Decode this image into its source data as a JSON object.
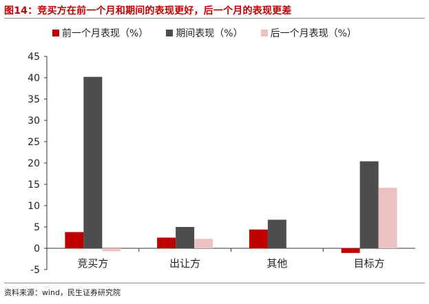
{
  "title": "图14：竞买方在前一个月和期间的表现更好，后一个月的表现更差",
  "source": "资料来源：wind，民生证券研究院",
  "chart_data": {
    "type": "bar",
    "categories": [
      "竞买方",
      "出让方",
      "其他",
      "目标方"
    ],
    "series": [
      {
        "name": "前一个月表现（%）",
        "color": "#c00000",
        "values": [
          3.8,
          2.5,
          4.4,
          -1.1
        ]
      },
      {
        "name": "期间表现（%）",
        "color": "#4d4d4d",
        "values": [
          40.2,
          5.0,
          6.7,
          20.4
        ]
      },
      {
        "name": "后一个月表现（%）",
        "color": "#ecc1c1",
        "values": [
          -0.7,
          2.2,
          0.0,
          14.2
        ]
      }
    ],
    "yticks": [
      "45",
      "40",
      "35",
      "30",
      "25",
      "20",
      "15",
      "10",
      "5",
      "0",
      "-5"
    ],
    "ylim": [
      -5,
      45
    ],
    "legend_position": "top",
    "grid": false
  }
}
